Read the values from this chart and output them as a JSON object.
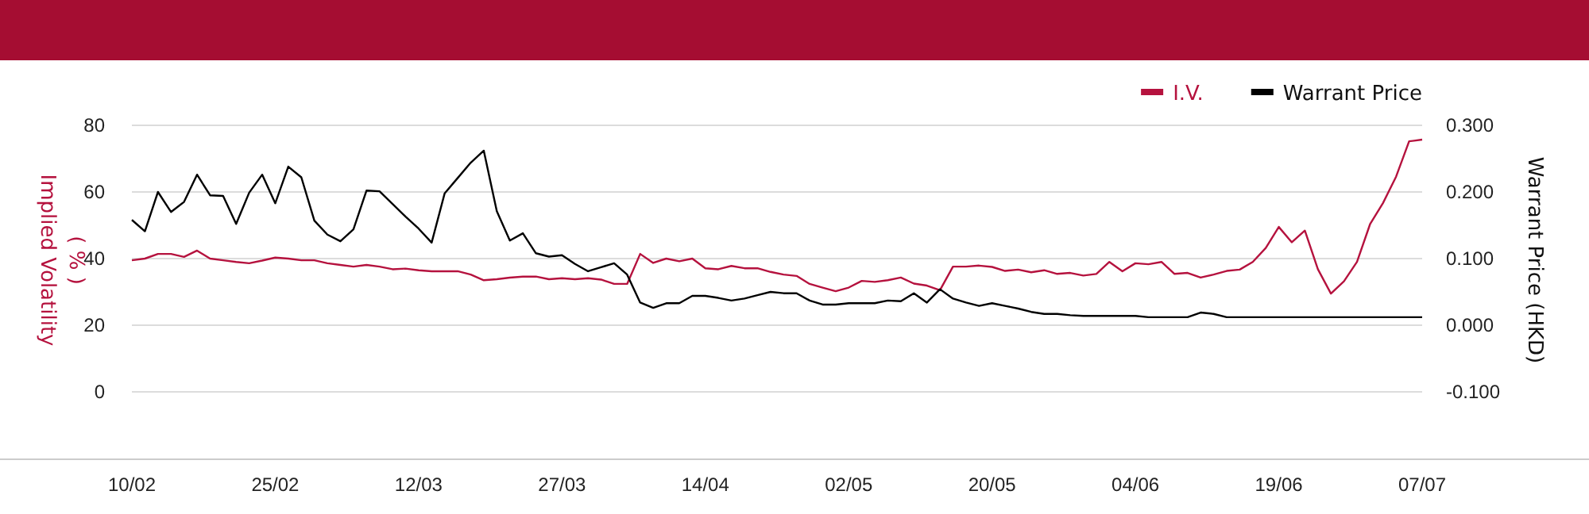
{
  "chart_data": {
    "type": "line",
    "categories": [
      "10/02",
      null,
      null,
      null,
      null,
      null,
      null,
      null,
      null,
      null,
      null,
      "25/02",
      null,
      null,
      null,
      null,
      null,
      null,
      null,
      null,
      null,
      null,
      "12/03",
      null,
      null,
      null,
      null,
      null,
      null,
      null,
      null,
      null,
      null,
      "27/03",
      null,
      null,
      null,
      null,
      null,
      null,
      null,
      null,
      null,
      null,
      "14/04",
      null,
      null,
      null,
      null,
      null,
      null,
      null,
      null,
      null,
      null,
      "02/05",
      null,
      null,
      null,
      null,
      null,
      null,
      null,
      null,
      null,
      null,
      "20/05",
      null,
      null,
      null,
      null,
      null,
      null,
      null,
      null,
      null,
      null,
      "04/06",
      null,
      null,
      null,
      null,
      null,
      null,
      null,
      null,
      null,
      null,
      "19/06",
      null,
      null,
      null,
      null,
      null,
      null,
      null,
      null,
      null,
      null,
      "07/07"
    ],
    "series": [
      {
        "name": "I.V.",
        "color": "#b5123e",
        "axis": "y",
        "values": [
          39.5,
          40,
          41.4,
          41.4,
          40.5,
          42.4,
          40,
          39.5,
          39,
          38.6,
          39.4,
          40.3,
          40,
          39.5,
          39.5,
          38.6,
          38.1,
          37.6,
          38.1,
          37.6,
          36.8,
          37,
          36.5,
          36.2,
          36.2,
          36.2,
          35.2,
          33.5,
          33.8,
          34.3,
          34.6,
          34.6,
          33.8,
          34.1,
          33.8,
          34.1,
          33.7,
          32.4,
          32.4,
          41.4,
          38.7,
          40,
          39.2,
          40,
          37.1,
          36.8,
          37.8,
          37.1,
          37.1,
          36,
          35.2,
          34.8,
          32.4,
          31.3,
          30.2,
          31.3,
          33.3,
          33,
          33.5,
          34.3,
          32.5,
          31.9,
          30.5,
          37.6,
          37.6,
          37.9,
          37.5,
          36.3,
          36.7,
          35.9,
          36.5,
          35.4,
          35.7,
          34.9,
          35.4,
          39,
          36.2,
          38.6,
          38.3,
          39,
          35.4,
          35.7,
          34.3,
          35.2,
          36.3,
          36.7,
          39,
          43.2,
          49.5,
          44.9,
          48.4,
          36.8,
          29.5,
          33.2,
          39,
          50.3,
          56.7,
          64.6,
          75.2,
          75.7
        ]
      },
      {
        "name": "Warrant Price",
        "color": "#000000",
        "axis": "y2",
        "values": [
          0.158,
          0.141,
          0.2,
          0.17,
          0.185,
          0.226,
          0.195,
          0.194,
          0.152,
          0.199,
          0.226,
          0.183,
          0.238,
          0.222,
          0.157,
          0.136,
          0.126,
          0.144,
          0.202,
          0.201,
          0.182,
          0.163,
          0.145,
          0.124,
          0.198,
          0.221,
          0.244,
          0.262,
          0.171,
          0.127,
          0.138,
          0.108,
          0.103,
          0.105,
          0.092,
          0.081,
          0.087,
          0.093,
          0.076,
          0.034,
          0.026,
          0.033,
          0.033,
          0.044,
          0.044,
          0.041,
          0.037,
          0.04,
          0.045,
          0.05,
          0.048,
          0.048,
          0.037,
          0.031,
          0.031,
          0.033,
          0.033,
          0.033,
          0.037,
          0.036,
          0.048,
          0.034,
          0.054,
          0.04,
          0.034,
          0.029,
          0.033,
          0.029,
          0.025,
          0.02,
          0.017,
          0.017,
          0.015,
          0.014,
          0.014,
          0.014,
          0.014,
          0.014,
          0.012,
          0.012,
          0.012,
          0.012,
          0.019,
          0.017,
          0.012,
          0.012,
          0.012,
          0.012,
          0.012,
          0.012,
          0.012,
          0.012,
          0.012,
          0.012,
          0.012,
          0.012,
          0.012,
          0.012,
          0.012,
          0.012
        ]
      }
    ],
    "ylim": [
      -20,
      80
    ],
    "yticks": [
      0,
      20,
      40,
      60,
      80
    ],
    "y2lim": [
      -0.2,
      0.3
    ],
    "y2ticks": [
      {
        "value": -0.1,
        "label": "-0.100"
      },
      {
        "value": 0,
        "label": "0.000"
      },
      {
        "value": 0.1,
        "label": "0.100"
      },
      {
        "value": 0.2,
        "label": "0.200"
      },
      {
        "value": 0.3,
        "label": "0.300"
      }
    ],
    "ylabel": "Implied Volatility ( % )",
    "y2label": "Warrant Price (HKD)",
    "grid": "y",
    "legend": "top right",
    "marker": "none",
    "line_style": "solid"
  }
}
